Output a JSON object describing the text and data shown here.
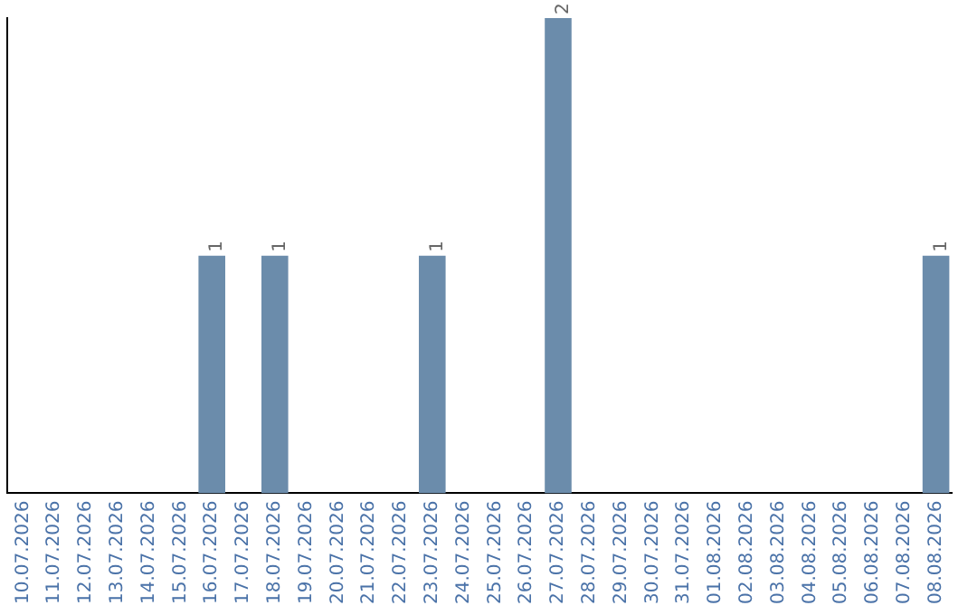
{
  "chart_data": {
    "type": "bar",
    "categories": [
      "10.07.2026",
      "11.07.2026",
      "12.07.2026",
      "13.07.2026",
      "14.07.2026",
      "15.07.2026",
      "16.07.2026",
      "17.07.2026",
      "18.07.2026",
      "19.07.2026",
      "20.07.2026",
      "21.07.2026",
      "22.07.2026",
      "23.07.2026",
      "24.07.2026",
      "25.07.2026",
      "26.07.2026",
      "27.07.2026",
      "28.07.2026",
      "29.07.2026",
      "30.07.2026",
      "31.07.2026",
      "01.08.2026",
      "02.08.2026",
      "03.08.2026",
      "04.08.2026",
      "05.08.2026",
      "06.08.2026",
      "07.08.2026",
      "08.08.2026"
    ],
    "values": [
      0,
      0,
      0,
      0,
      0,
      0,
      1,
      0,
      1,
      0,
      0,
      0,
      0,
      1,
      0,
      0,
      0,
      2,
      0,
      0,
      0,
      0,
      0,
      0,
      0,
      0,
      0,
      0,
      0,
      1
    ],
    "value_labels": [
      null,
      null,
      null,
      null,
      null,
      null,
      "1",
      null,
      "1",
      null,
      null,
      null,
      null,
      "1",
      null,
      null,
      null,
      "2",
      null,
      null,
      null,
      null,
      null,
      null,
      null,
      null,
      null,
      null,
      null,
      "1"
    ],
    "color": "#6b8cab",
    "grid": false,
    "legend": false,
    "tick_labels": "x"
  }
}
